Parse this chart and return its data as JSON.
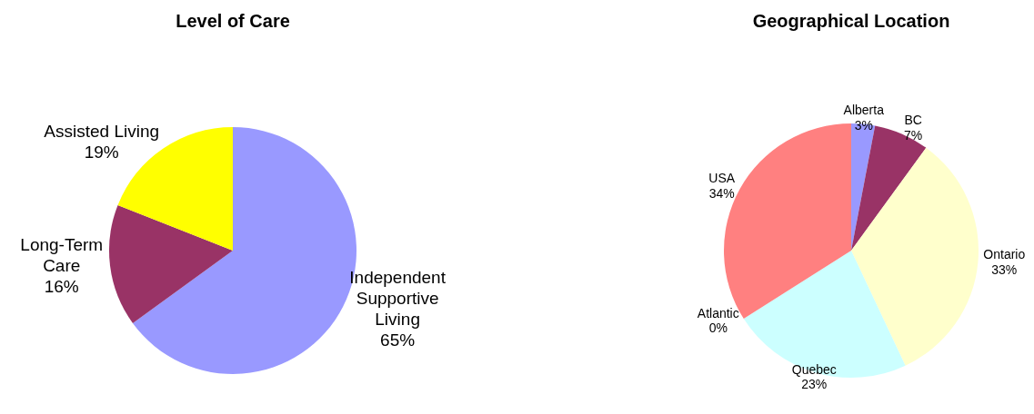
{
  "chart_data": [
    {
      "type": "pie",
      "title": "Level of Care",
      "categories": [
        "Independent Supportive Living",
        "Long-Term Care",
        "Assisted Living"
      ],
      "values": [
        65,
        16,
        19
      ],
      "value_labels": [
        "65%",
        "16%",
        "19%"
      ],
      "colors": [
        "#9999ff",
        "#993366",
        "#ffff00"
      ],
      "legend": false
    },
    {
      "type": "pie",
      "title": "Geographical Location",
      "categories": [
        "Alberta",
        "BC",
        "Ontario",
        "Quebec",
        "Atlantic",
        "USA"
      ],
      "values": [
        3,
        7,
        33,
        23,
        0,
        34
      ],
      "value_labels": [
        "3%",
        "7%",
        "33%",
        "23%",
        "0%",
        "34%"
      ],
      "colors": [
        "#9999ff",
        "#993366",
        "#ffffcc",
        "#ccffff",
        "#660066",
        "#ff8080"
      ],
      "legend": false
    }
  ]
}
